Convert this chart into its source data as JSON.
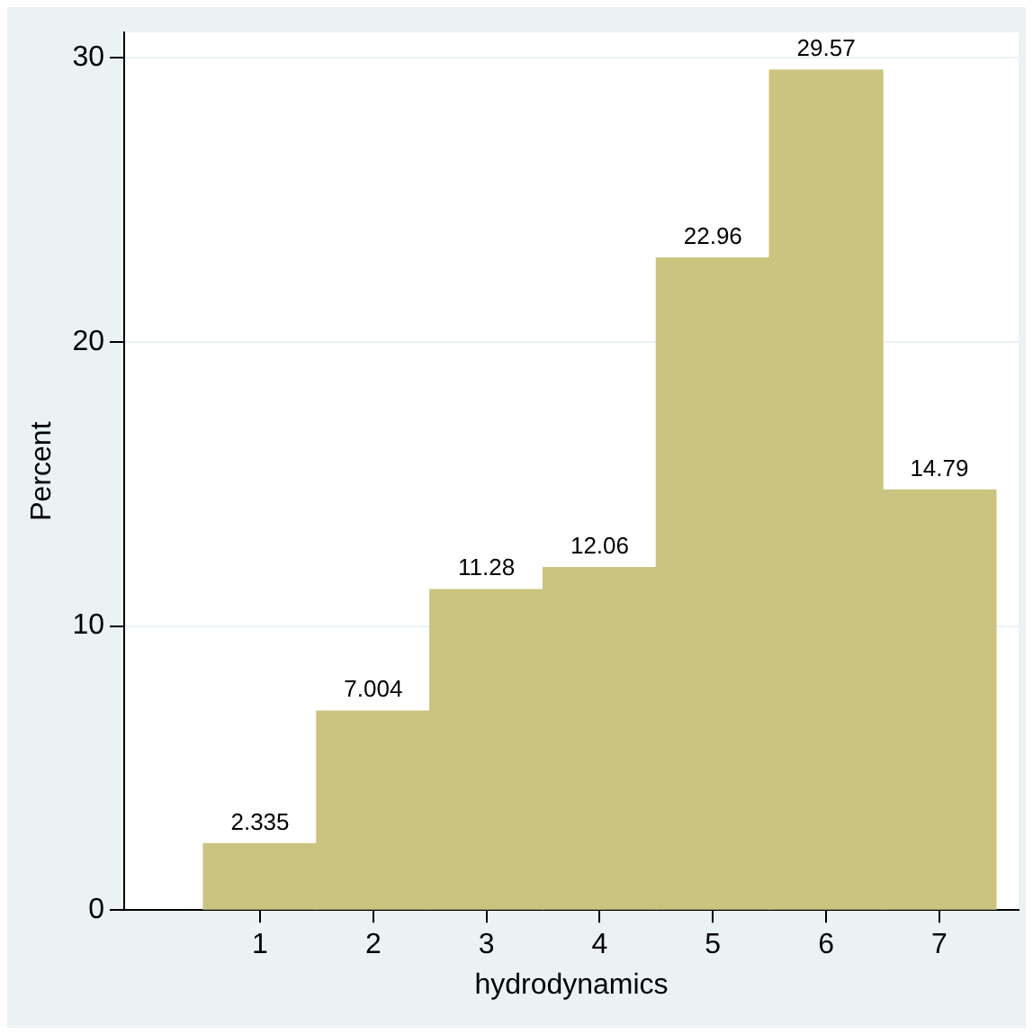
{
  "chart_data": {
    "type": "histogram",
    "xlabel": "hydrodynamics",
    "ylabel": "Percent",
    "bins": [
      0.5,
      1.5,
      2.5,
      3.5,
      4.5,
      5.5,
      6.5,
      7.5
    ],
    "values": [
      2.335,
      7.004,
      11.28,
      12.06,
      22.96,
      29.57,
      14.79
    ],
    "color": "#cbc380",
    "xlim": [
      -0.2,
      7.7
    ],
    "xticks": [
      1,
      2,
      3,
      4,
      5,
      6,
      7
    ],
    "ylim": [
      0,
      30.9
    ],
    "yticks": [
      0,
      10,
      20,
      30
    ],
    "grid": "y",
    "data_labels": true,
    "legend": false
  }
}
